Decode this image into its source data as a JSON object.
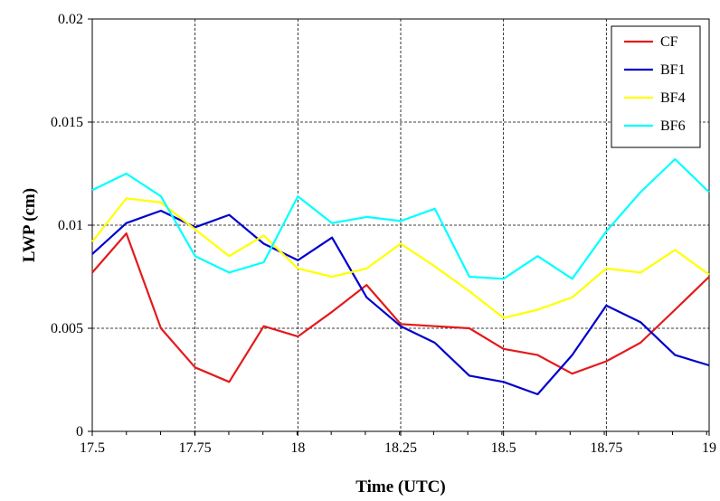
{
  "chart_data": {
    "type": "line",
    "title": "",
    "xlabel": "Time (UTC)",
    "ylabel": "LWP (cm)",
    "xlim": [
      17.5,
      19
    ],
    "ylim": [
      0,
      0.02
    ],
    "x_ticks": [
      17.5,
      17.75,
      18,
      18.25,
      18.5,
      18.75,
      19
    ],
    "x_tick_labels": [
      "17.5",
      "17.75",
      "18",
      "18.25",
      "18.5",
      "18.75",
      "19"
    ],
    "y_ticks": [
      0,
      0.005,
      0.01,
      0.015,
      0.02
    ],
    "y_tick_labels": [
      "0",
      "0.005",
      "0.01",
      "0.015",
      "0.02"
    ],
    "grid": "dashed",
    "legend_position": "top-right",
    "x": [
      17.5,
      17.583,
      17.667,
      17.75,
      17.833,
      17.917,
      18,
      18.083,
      18.167,
      18.25,
      18.333,
      18.417,
      18.5,
      18.583,
      18.667,
      18.75,
      18.833,
      18.917,
      19
    ],
    "series": [
      {
        "name": "CF",
        "color": "#e41a1c",
        "values": [
          0.0077,
          0.0096,
          0.005,
          0.0031,
          0.0024,
          0.0051,
          0.0046,
          0.0058,
          0.0071,
          0.0052,
          0.0051,
          0.005,
          0.004,
          0.0037,
          0.0028,
          0.0034,
          0.0043,
          0.0059,
          0.0075
        ]
      },
      {
        "name": "BF1",
        "color": "#0000cc",
        "values": [
          0.0086,
          0.0101,
          0.0107,
          0.0099,
          0.0105,
          0.0091,
          0.0083,
          0.0094,
          0.0065,
          0.0051,
          0.0043,
          0.0027,
          0.0024,
          0.0018,
          0.0037,
          0.0061,
          0.0053,
          0.0037,
          0.0032
        ]
      },
      {
        "name": "BF4",
        "color": "#ffff00",
        "values": [
          0.0092,
          0.0113,
          0.0111,
          0.0098,
          0.0085,
          0.0095,
          0.0079,
          0.0075,
          0.0079,
          0.0091,
          0.008,
          0.0068,
          0.0055,
          0.0059,
          0.0065,
          0.0079,
          0.0077,
          0.0088,
          0.0076
        ]
      },
      {
        "name": "BF6",
        "color": "#00ffff",
        "values": [
          0.0117,
          0.0125,
          0.0114,
          0.0085,
          0.0077,
          0.0082,
          0.0114,
          0.0101,
          0.0104,
          0.0102,
          0.0108,
          0.0075,
          0.0074,
          0.0085,
          0.0074,
          0.0097,
          0.0116,
          0.0132,
          0.0116
        ]
      }
    ]
  }
}
